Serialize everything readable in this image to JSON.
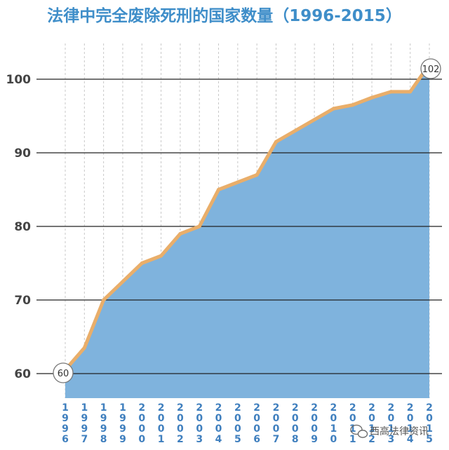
{
  "chart_data": {
    "type": "area",
    "title": "法律中完全废除死刑的国家数量（1996-2015）",
    "x": [
      "1996",
      "1997",
      "1998",
      "1999",
      "2000",
      "2001",
      "2002",
      "2003",
      "2004",
      "2005",
      "2006",
      "2007",
      "2008",
      "2009",
      "2010",
      "2011",
      "2012",
      "2013",
      "2014",
      "2015"
    ],
    "values": [
      60.5,
      63.5,
      70,
      72.5,
      75,
      76,
      79,
      80,
      85,
      86,
      87,
      91.5,
      93,
      94.5,
      96,
      96.5,
      97.5,
      98.3,
      98.3,
      102
    ],
    "ylim": [
      56,
      107
    ],
    "yticks": [
      60,
      70,
      80,
      90,
      100
    ],
    "grid": true,
    "annotations": {
      "first": "60",
      "last": "102"
    },
    "colors": {
      "fill": "#7fb3dd",
      "line": "#e9ae6a",
      "title": "#3f8ec9"
    }
  },
  "watermark": {
    "icon": "wechat-icon",
    "text": "西高法律资讯"
  }
}
